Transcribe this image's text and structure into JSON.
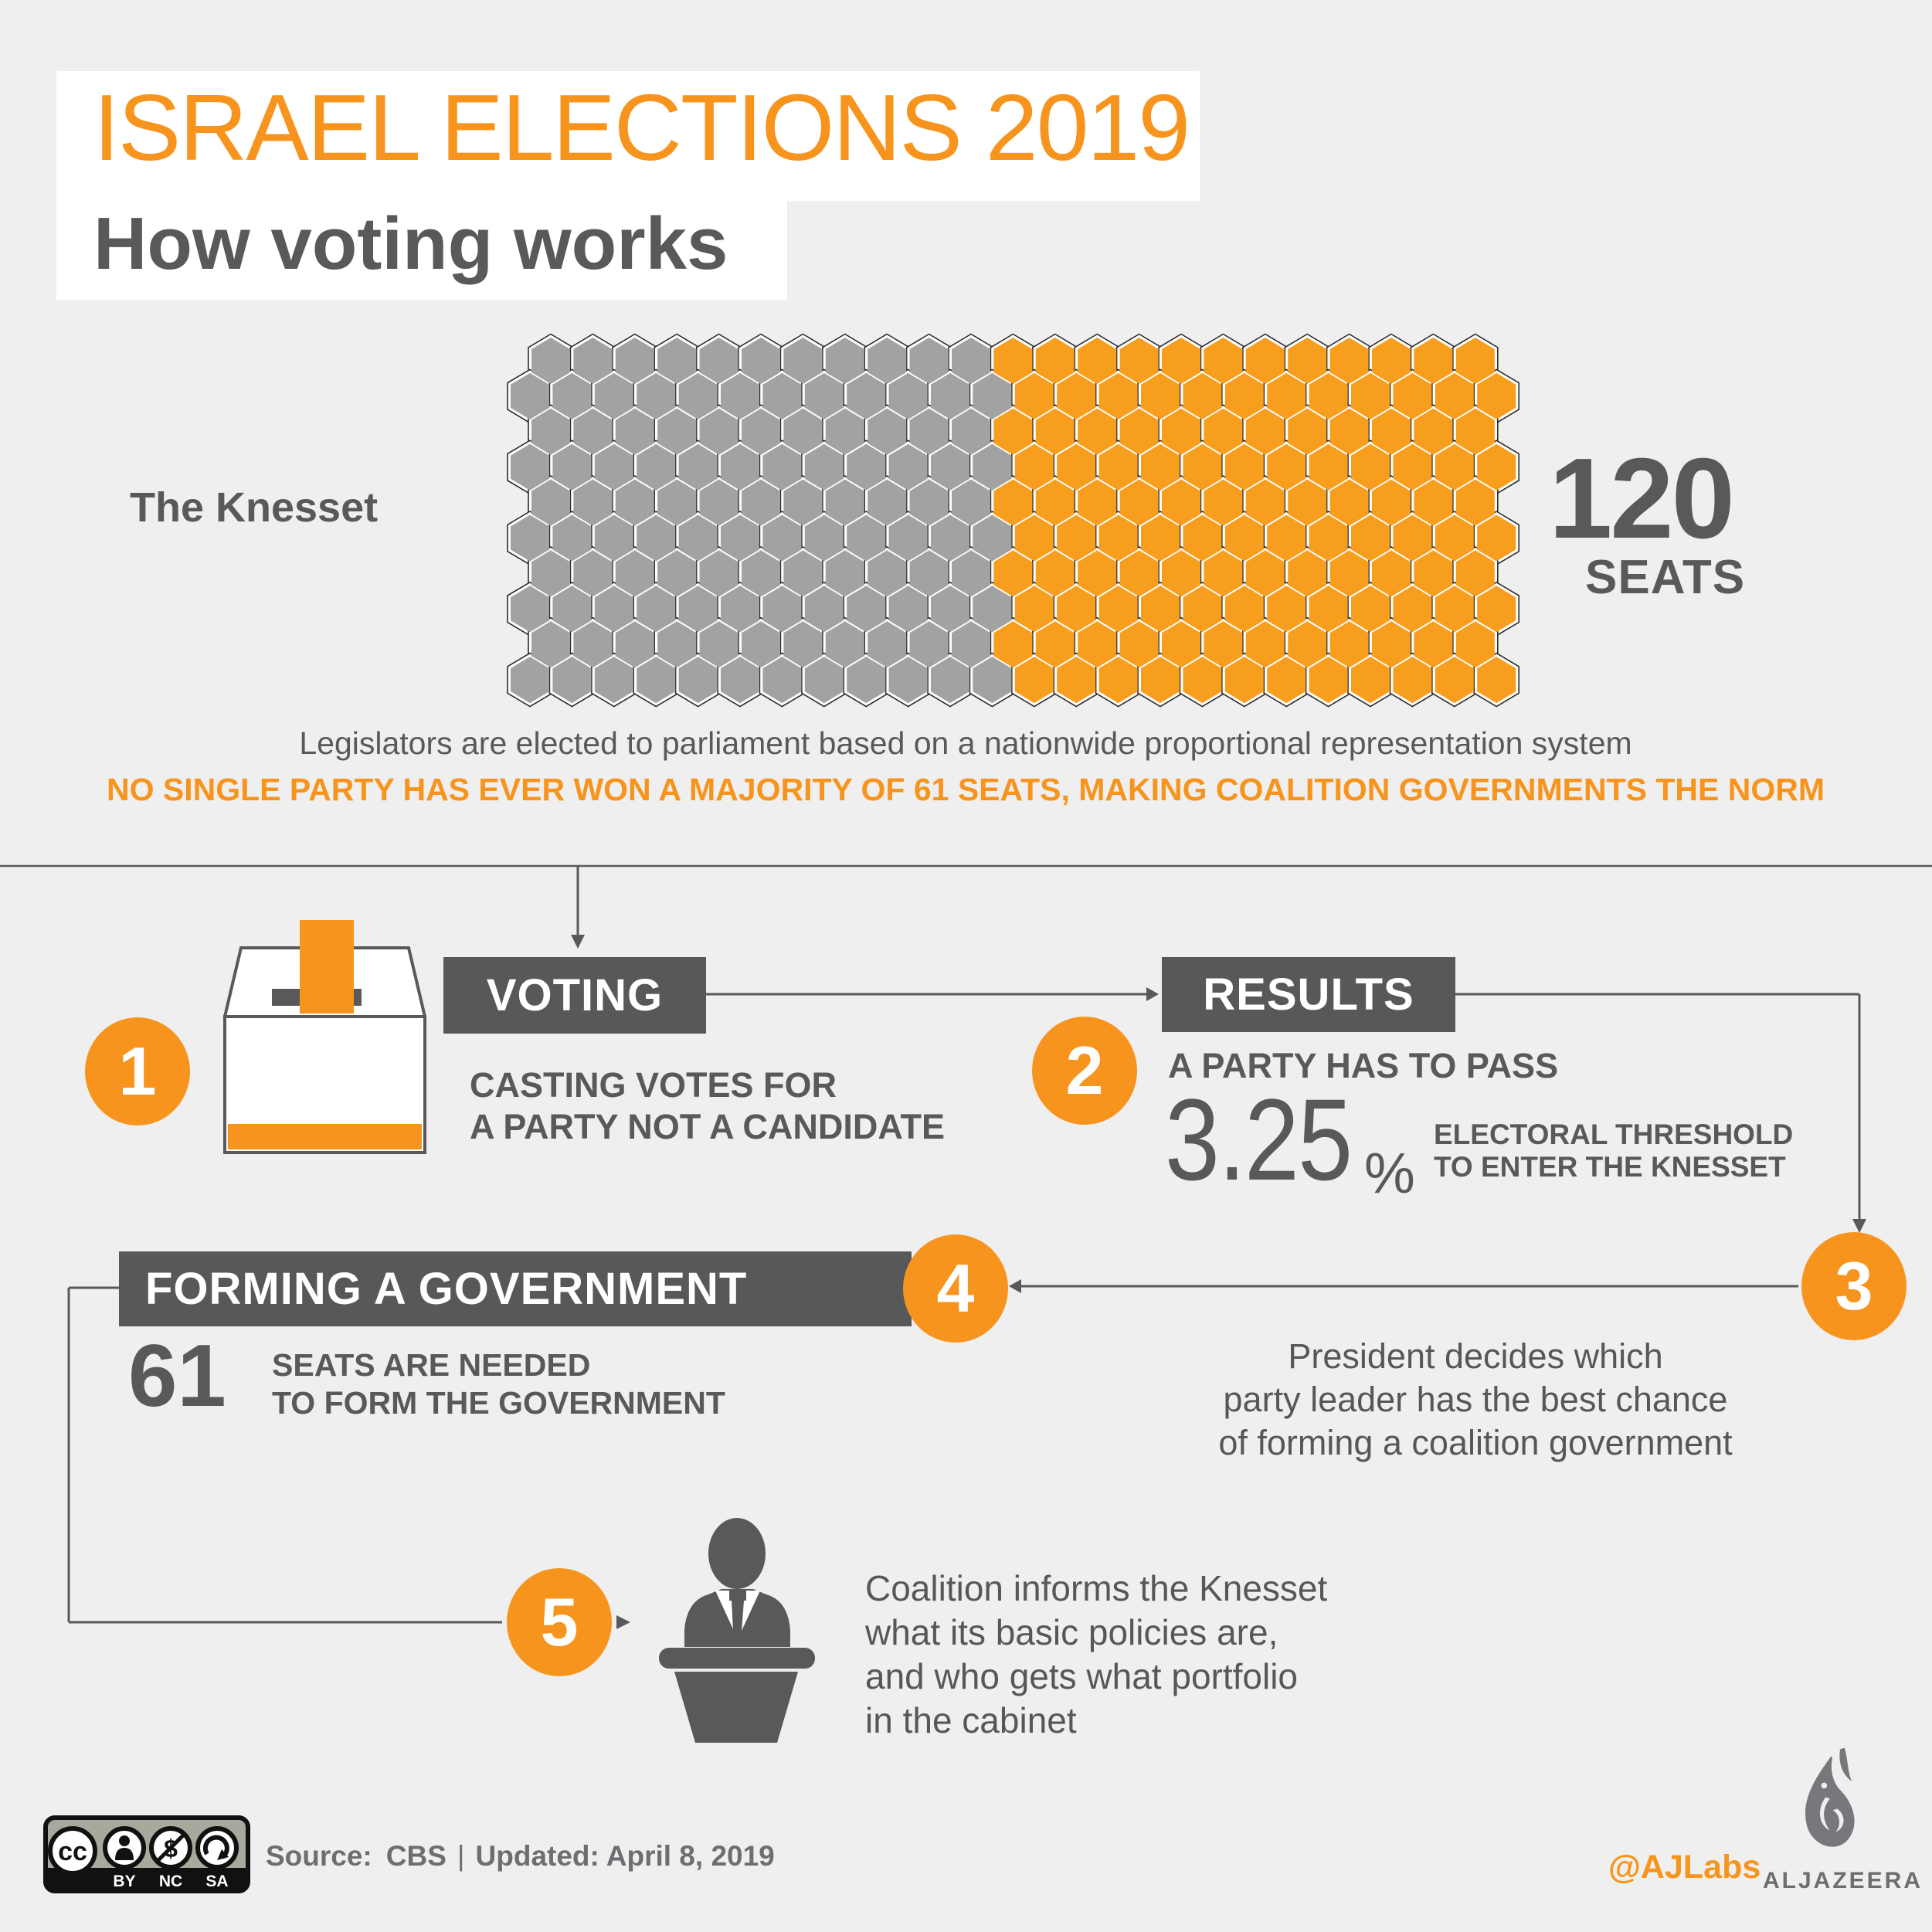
{
  "colors": {
    "background": "#efefef",
    "panel_white": "#ffffff",
    "orange": "#f7941d",
    "seat_orange": "#f89e1f",
    "seat_gray": "#a1a2a2",
    "dark_box": "#57585a",
    "text_dark": "#58595b",
    "text_body": "#555759",
    "line": "#58595b",
    "footer_gray": "#6d6e71",
    "cc_badge_bg": "#a5aa9c",
    "icon_gray": "#77787b",
    "black": "#111111",
    "white": "#ffffff"
  },
  "header": {
    "title": "ISRAEL ELECTIONS 2019",
    "subtitle": "How voting works"
  },
  "knesset": {
    "label": "The Knesset",
    "seats_value": "120",
    "seats_word": "SEATS",
    "caption": "Legislators are elected to parliament based on a nationwide proportional representation system",
    "note": "NO SINGLE PARTY HAS EVER WON A MAJORITY OF 61 SEATS, MAKING COALITION GOVERNMENTS THE NORM"
  },
  "chart_data": {
    "type": "pictogram",
    "title": "The Knesset",
    "total_seats": 120,
    "unit": "seats",
    "majority_seats_needed": 61,
    "electoral_threshold_percent": 3.25,
    "legend": "honeycomb seat map, gray block on left and orange block on right",
    "visual": {
      "rows": 10,
      "hexes_short_row": 23,
      "hexes_long_row": 24,
      "gray_hexes_short_row": 11,
      "gray_hexes_long_row": 12,
      "orange_hexes_total": 120
    }
  },
  "honeycomb": {
    "rows": 10,
    "short_row_count": 23,
    "long_row_count": 24,
    "gray_short": 11,
    "gray_long": 12
  },
  "steps": {
    "one": {
      "num": "1",
      "box": "VOTING",
      "lines": [
        "CASTING VOTES FOR",
        "A PARTY NOT A CANDIDATE"
      ]
    },
    "two": {
      "num": "2",
      "box": "RESULTS",
      "lead": "A PARTY HAS TO PASS",
      "threshold": "3.25",
      "pct": "%",
      "desc": [
        "ELECTORAL THRESHOLD",
        "TO ENTER THE KNESSET"
      ]
    },
    "three": {
      "num": "3",
      "lines": [
        "President decides which",
        "party leader has the best chance",
        "of forming a coalition government"
      ]
    },
    "four": {
      "num": "4",
      "box": "FORMING A GOVERNMENT",
      "big": "61",
      "lines": [
        "SEATS ARE NEEDED",
        "TO FORM THE GOVERNMENT"
      ]
    },
    "five": {
      "num": "5",
      "lines": [
        "Coalition informs the Knesset",
        "what its basic policies are,",
        "and who gets what  portfolio",
        "in the cabinet"
      ]
    }
  },
  "footer": {
    "source_label": "Source:",
    "source_value": "CBS",
    "separator": "|",
    "updated": "Updated: April 8, 2019",
    "handle": "@AJLabs",
    "brand": "ALJAZEERA",
    "license": {
      "cc": "cc",
      "by": "BY",
      "nc": "NC",
      "sa": "SA",
      "nc_symbol": "$"
    }
  }
}
